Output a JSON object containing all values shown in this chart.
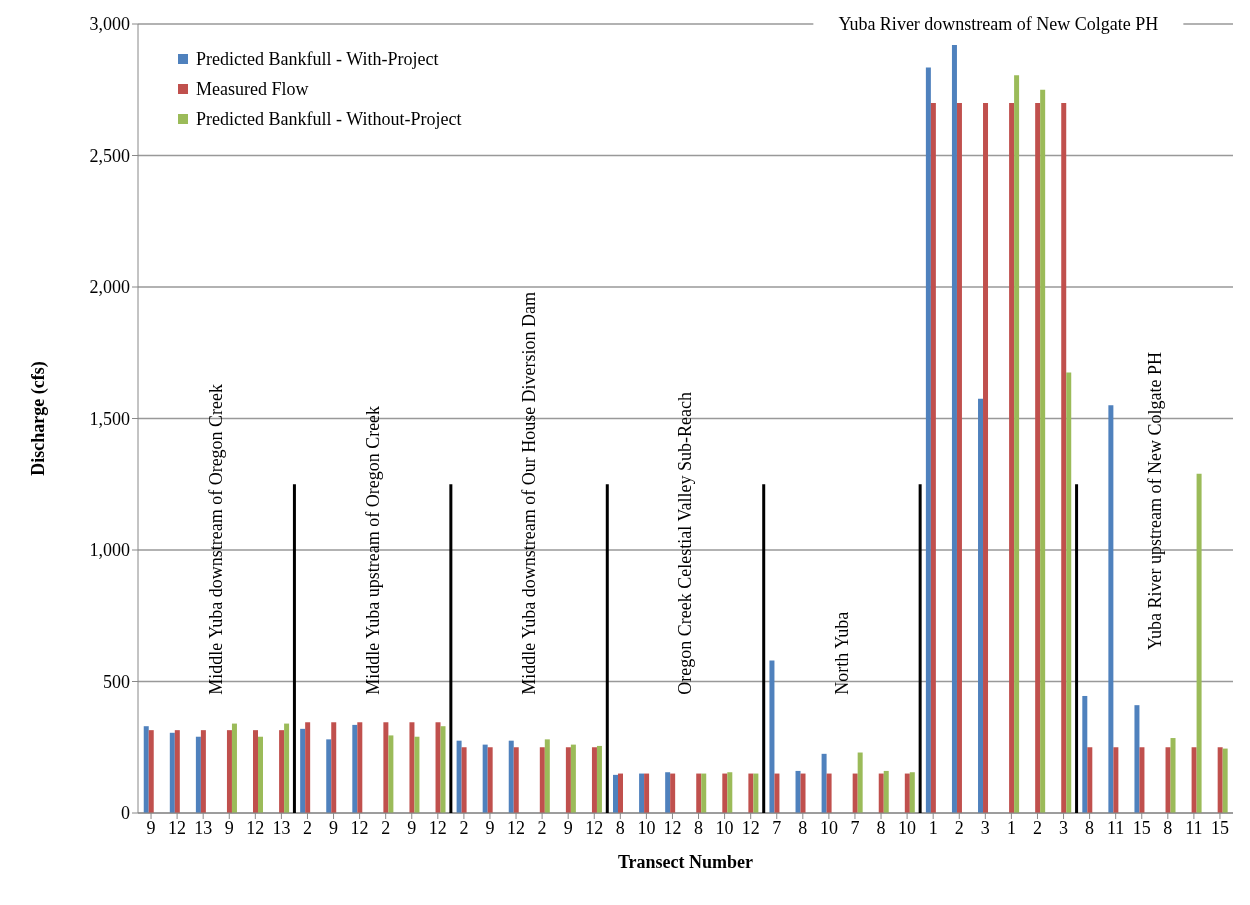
{
  "chart_data": {
    "type": "bar",
    "xlabel": "Transect Number",
    "ylabel": "Discharge (cfs)",
    "categories": [
      "9",
      "12",
      "13",
      "9",
      "12",
      "13",
      "2",
      "9",
      "12",
      "2",
      "9",
      "12",
      "2",
      "9",
      "12",
      "2",
      "9",
      "12",
      "8",
      "10",
      "12",
      "8",
      "10",
      "12",
      "7",
      "8",
      "10",
      "7",
      "8",
      "10",
      "1",
      "2",
      "3",
      "1",
      "2",
      "3",
      "8",
      "11",
      "15",
      "8",
      "11",
      "15"
    ],
    "series": [
      {
        "name": "Predicted Bankfull - With-Project",
        "color": "#4f81bd",
        "values": [
          330,
          305,
          290,
          null,
          null,
          null,
          320,
          280,
          335,
          null,
          null,
          null,
          275,
          260,
          275,
          null,
          null,
          null,
          145,
          150,
          155,
          null,
          null,
          null,
          580,
          160,
          225,
          null,
          null,
          null,
          2835,
          2920,
          1575,
          null,
          null,
          null,
          445,
          1550,
          410,
          null,
          null,
          null
        ]
      },
      {
        "name": "Measured Flow",
        "color": "#c0504d",
        "values": [
          315,
          315,
          315,
          315,
          315,
          315,
          345,
          345,
          345,
          345,
          345,
          345,
          250,
          250,
          250,
          250,
          250,
          250,
          150,
          150,
          150,
          150,
          150,
          150,
          150,
          150,
          150,
          150,
          150,
          150,
          2700,
          2700,
          2700,
          2700,
          2700,
          2700,
          250,
          250,
          250,
          250,
          250,
          250
        ]
      },
      {
        "name": "Predicted Bankfull - Without-Project",
        "color": "#9bbb59",
        "values": [
          null,
          null,
          null,
          340,
          290,
          340,
          null,
          null,
          null,
          295,
          290,
          330,
          null,
          null,
          null,
          280,
          260,
          255,
          null,
          null,
          null,
          150,
          155,
          150,
          null,
          null,
          null,
          230,
          160,
          155,
          null,
          null,
          null,
          2805,
          2750,
          1675,
          null,
          null,
          null,
          285,
          1290,
          245
        ]
      }
    ],
    "ylim": [
      0,
      3000
    ],
    "yticks": [
      0,
      500,
      {
        "value": 1000,
        "label": "1,000"
      },
      {
        "value": 1500,
        "label": "1,500"
      },
      {
        "value": 2000,
        "label": "2,000"
      },
      {
        "value": 2500,
        "label": "2,500"
      },
      {
        "value": 3000,
        "label": "3,000"
      }
    ],
    "grid": "y",
    "legend": "top left",
    "annotations": [
      "Middle  Yuba downstream of Oregon Creek",
      "Middle  Yuba upstream of Oregon Creek",
      "Middle  Yuba downstream of Our House Diversion Dam",
      "Oregon Creek Celestial Valley Sub-Reach",
      "North Yuba",
      "Yuba River downstream of New Colgate PH",
      "Yuba River upstream of New Colgate PH"
    ]
  }
}
